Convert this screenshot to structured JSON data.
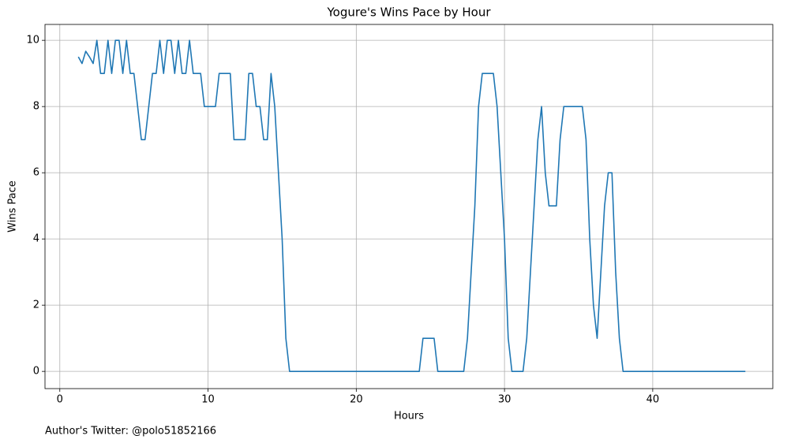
{
  "chart_data": {
    "type": "line",
    "title": "Yogure's Wins Pace by Hour",
    "x_label": "Hours",
    "y_label": "Wins Pace",
    "footnote": "Author's Twitter: @polo51852166",
    "x": [
      1.25,
      1.5,
      1.75,
      2.0,
      2.25,
      2.5,
      2.75,
      3.0,
      3.25,
      3.5,
      3.75,
      4.0,
      4.25,
      4.5,
      4.75,
      5.0,
      5.25,
      5.5,
      5.75,
      6.0,
      6.25,
      6.5,
      6.75,
      7.0,
      7.25,
      7.5,
      7.75,
      8.0,
      8.25,
      8.5,
      8.75,
      9.0,
      9.25,
      9.5,
      9.75,
      10.0,
      10.25,
      10.5,
      10.75,
      11.0,
      11.25,
      11.5,
      11.75,
      12.0,
      12.25,
      12.5,
      12.75,
      13.0,
      13.25,
      13.5,
      13.75,
      14.0,
      14.25,
      14.5,
      14.75,
      15.0,
      15.25,
      15.5,
      15.75,
      16.0,
      16.25,
      16.5,
      16.75,
      17.0,
      17.25,
      17.5,
      17.75,
      18.0,
      18.25,
      18.5,
      18.75,
      19.0,
      19.25,
      19.5,
      19.75,
      20.0,
      20.25,
      20.5,
      20.75,
      21.0,
      21.25,
      21.5,
      21.75,
      22.0,
      22.25,
      22.5,
      22.75,
      23.0,
      23.25,
      23.5,
      23.75,
      24.0,
      24.25,
      24.5,
      24.75,
      25.0,
      25.25,
      25.5,
      25.75,
      26.0,
      26.25,
      26.5,
      26.75,
      27.0,
      27.25,
      27.5,
      27.75,
      28.0,
      28.25,
      28.5,
      28.75,
      29.0,
      29.25,
      29.5,
      29.75,
      30.0,
      30.25,
      30.5,
      30.75,
      31.0,
      31.25,
      31.5,
      31.75,
      32.0,
      32.25,
      32.5,
      32.75,
      33.0,
      33.25,
      33.5,
      33.75,
      34.0,
      34.25,
      34.5,
      34.75,
      35.0,
      35.25,
      35.5,
      35.75,
      36.0,
      36.25,
      36.5,
      36.75,
      37.0,
      37.25,
      37.5,
      37.75,
      38.0,
      38.25,
      38.5,
      38.75,
      39.0,
      39.25,
      39.5,
      39.75,
      40.0,
      40.25,
      40.5,
      40.75,
      41.0,
      41.25,
      41.5,
      41.75,
      42.0,
      42.25,
      42.5,
      42.75,
      43.0,
      43.25,
      43.5,
      43.75,
      44.0,
      44.25,
      44.5,
      44.75,
      45.0,
      45.25,
      45.5,
      45.75,
      46.0,
      46.25
    ],
    "series": [
      {
        "name": "Wins Pace",
        "color": "#1f77b4",
        "values": [
          9.5,
          9.3,
          9.67,
          9.5,
          9.3,
          10,
          9,
          9,
          10,
          9,
          10,
          10,
          9,
          10,
          9,
          9,
          8,
          7,
          7,
          8,
          9,
          9,
          10,
          9,
          10,
          10,
          9,
          10,
          9,
          9,
          10,
          9,
          9,
          9,
          8,
          8,
          8,
          8,
          9,
          9,
          9,
          9,
          7,
          7,
          7,
          7,
          9,
          9,
          8,
          8,
          7,
          7,
          9,
          8,
          6,
          4,
          1,
          0,
          0,
          0,
          0,
          0,
          0,
          0,
          0,
          0,
          0,
          0,
          0,
          0,
          0,
          0,
          0,
          0,
          0,
          0,
          0,
          0,
          0,
          0,
          0,
          0,
          0,
          0,
          0,
          0,
          0,
          0,
          0,
          0,
          0,
          0,
          0,
          1,
          1,
          1,
          1,
          0,
          0,
          0,
          0,
          0,
          0,
          0,
          0,
          1,
          3,
          5,
          8,
          9,
          9,
          9,
          9,
          8,
          6,
          4,
          1,
          0,
          0,
          0,
          0,
          1,
          3,
          5,
          7,
          8,
          6,
          5,
          5,
          5,
          7,
          8,
          8,
          8,
          8,
          8,
          8,
          7,
          4,
          2,
          1,
          3,
          5,
          6,
          6,
          3,
          1,
          0,
          0,
          0,
          0,
          0,
          0,
          0,
          0,
          0,
          0,
          0,
          0,
          0,
          0,
          0,
          0,
          0,
          0,
          0,
          0,
          0,
          0,
          0,
          0,
          0,
          0,
          0,
          0,
          0,
          0,
          0,
          0,
          0,
          0
        ]
      }
    ],
    "xlim": [
      -1.0,
      48.1
    ],
    "ylim": [
      -0.52,
      10.48
    ],
    "xticks": [
      0,
      10,
      20,
      30,
      40
    ],
    "yticks": [
      0,
      2,
      4,
      6,
      8,
      10
    ],
    "grid": true
  }
}
